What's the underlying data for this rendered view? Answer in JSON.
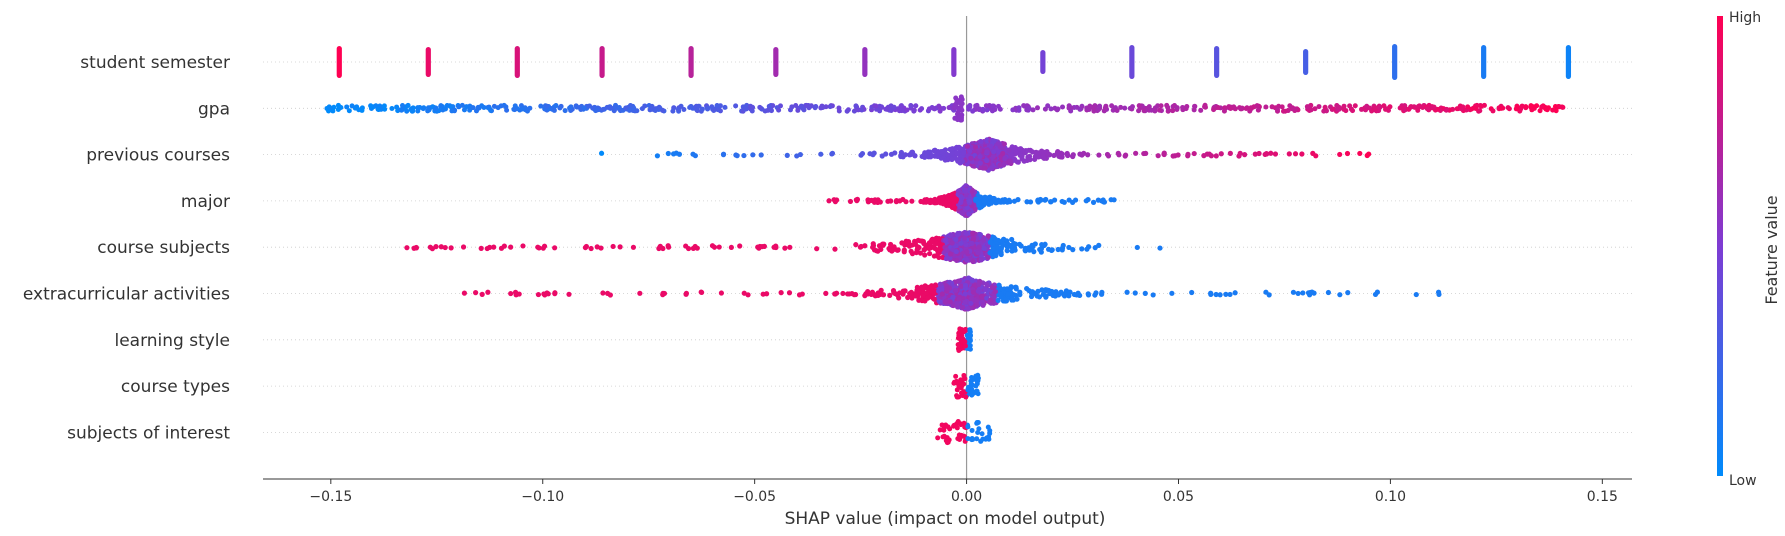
{
  "chart_data": {
    "type": "scatter",
    "subtype": "shap-beeswarm",
    "xlabel": "SHAP value (impact on model output)",
    "xlim": [
      -0.166,
      0.157
    ],
    "xticks": [
      -0.15,
      -0.1,
      -0.05,
      0.0,
      0.05,
      0.1,
      0.15
    ],
    "xtick_labels": [
      "−0.15",
      "−0.10",
      "−0.05",
      "0.00",
      "0.05",
      "0.10",
      "0.15"
    ],
    "zero_line": true,
    "row_gridlines": "dotted",
    "colorbar": {
      "label": "Feature value",
      "high_label": "High",
      "low_label": "Low",
      "low_color": "#008bfb",
      "mid_color": "#7e3cd3",
      "high_color": "#ff0052"
    },
    "features": [
      {
        "name": "student semester",
        "clusters": [
          {
            "x": -0.148,
            "c": 1.0,
            "h": 16
          },
          {
            "x": -0.127,
            "c": 0.92,
            "h": 15
          },
          {
            "x": -0.106,
            "c": 0.85,
            "h": 16
          },
          {
            "x": -0.086,
            "c": 0.78,
            "h": 16
          },
          {
            "x": -0.065,
            "c": 0.72,
            "h": 16
          },
          {
            "x": -0.045,
            "c": 0.64,
            "h": 15
          },
          {
            "x": -0.024,
            "c": 0.58,
            "h": 15
          },
          {
            "x": -0.003,
            "c": 0.52,
            "h": 15
          },
          {
            "x": 0.018,
            "c": 0.46,
            "h": 12
          },
          {
            "x": 0.039,
            "c": 0.42,
            "h": 17
          },
          {
            "x": 0.059,
            "c": 0.35,
            "h": 16
          },
          {
            "x": 0.08,
            "c": 0.28,
            "h": 13
          },
          {
            "x": 0.101,
            "c": 0.18,
            "h": 18
          },
          {
            "x": 0.122,
            "c": 0.1,
            "h": 17
          },
          {
            "x": 0.142,
            "c": 0.05,
            "h": 17
          }
        ]
      },
      {
        "name": "gpa",
        "range": [
          -0.151,
          0.141
        ],
        "density": "uniform",
        "center_cluster": {
          "x": -0.002,
          "spread": 0.006
        }
      },
      {
        "name": "previous courses",
        "range": [
          -0.087,
          0.096
        ],
        "density": "peak_near_zero",
        "peak": 0.005
      },
      {
        "name": "major",
        "range": [
          -0.033,
          0.035
        ],
        "density": "peak_near_zero",
        "color_sign": "negative_high"
      },
      {
        "name": "course subjects",
        "range": [
          -0.135,
          0.049
        ],
        "density": "peak_near_zero",
        "color_sign": "negative_high"
      },
      {
        "name": "extracurricular activities",
        "range": [
          -0.119,
          0.115
        ],
        "density": "peak_near_zero",
        "color_sign": "negative_high"
      },
      {
        "name": "learning style",
        "range": [
          -0.002,
          0.001
        ],
        "density": "tight"
      },
      {
        "name": "course types",
        "range": [
          -0.003,
          0.003
        ],
        "density": "tight"
      },
      {
        "name": "subjects of interest",
        "range": [
          -0.007,
          0.006
        ],
        "density": "tight"
      }
    ]
  }
}
